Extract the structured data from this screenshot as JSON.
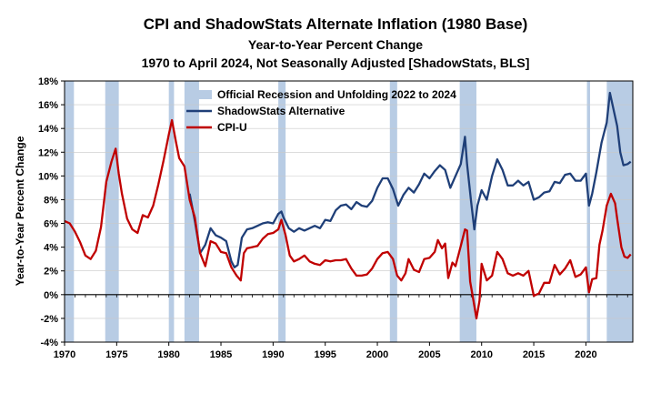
{
  "chart_data": {
    "type": "line",
    "title": "CPI and ShadowStats Alternate Inflation (1980 Base)",
    "subtitle": "Year-to-Year Percent Change",
    "subtitle2": "1970 to April 2024, Not Seasonally Adjusted  [ShadowStats, BLS]",
    "ylabel": "Year-to-Year Percent Change",
    "xlabel": "",
    "xlim": [
      1970,
      2024.5
    ],
    "ylim": [
      -4,
      18
    ],
    "y_ticks": [
      -4,
      -2,
      0,
      2,
      4,
      6,
      8,
      10,
      12,
      14,
      16,
      18
    ],
    "y_tick_labels": [
      "-4%",
      "-2%",
      "0%",
      "2%",
      "4%",
      "6%",
      "8%",
      "10%",
      "12%",
      "14%",
      "16%",
      "18%"
    ],
    "x_ticks": [
      1970,
      1975,
      1980,
      1985,
      1990,
      1995,
      2000,
      2005,
      2010,
      2015,
      2020
    ],
    "x_tick_labels": [
      "1970",
      "1975",
      "1980",
      "1985",
      "1990",
      "1995",
      "2000",
      "2005",
      "2010",
      "2015",
      "2020"
    ],
    "legend_position": "top-center",
    "recessions": {
      "name": "Official Recession and Unfolding 2022 to 2024",
      "color": "#b8cce4",
      "periods": [
        [
          1970.0,
          1970.9
        ],
        [
          1973.9,
          1975.2
        ],
        [
          1980.0,
          1980.5
        ],
        [
          1981.5,
          1982.9
        ],
        [
          1990.5,
          1991.2
        ],
        [
          2001.2,
          2001.9
        ],
        [
          2007.9,
          2009.5
        ],
        [
          2020.1,
          2020.4
        ],
        [
          2022.0,
          2024.5
        ]
      ]
    },
    "series": [
      {
        "name": "ShadowStats Alternative",
        "color": "#1f3f78",
        "x": [
          1982.0,
          1982.5,
          1983.0,
          1983.5,
          1984.0,
          1984.5,
          1985.0,
          1985.5,
          1986.0,
          1986.3,
          1986.6,
          1987.0,
          1987.5,
          1988.0,
          1988.5,
          1989.0,
          1989.5,
          1990.0,
          1990.5,
          1990.8,
          1991.0,
          1991.5,
          1992.0,
          1992.5,
          1993.0,
          1993.5,
          1994.0,
          1994.5,
          1995.0,
          1995.5,
          1996.0,
          1996.5,
          1997.0,
          1997.5,
          1998.0,
          1998.5,
          1999.0,
          1999.5,
          2000.0,
          2000.5,
          2001.0,
          2001.5,
          2002.0,
          2002.5,
          2003.0,
          2003.5,
          2004.0,
          2004.5,
          2005.0,
          2005.5,
          2006.0,
          2006.5,
          2007.0,
          2007.5,
          2008.0,
          2008.4,
          2008.6,
          2009.0,
          2009.3,
          2009.6,
          2010.0,
          2010.5,
          2011.0,
          2011.5,
          2012.0,
          2012.5,
          2013.0,
          2013.5,
          2014.0,
          2014.5,
          2015.0,
          2015.5,
          2016.0,
          2016.5,
          2017.0,
          2017.5,
          2018.0,
          2018.5,
          2019.0,
          2019.5,
          2020.0,
          2020.3,
          2020.6,
          2021.0,
          2021.5,
          2022.0,
          2022.3,
          2022.5,
          2023.0,
          2023.3,
          2023.6,
          2024.0,
          2024.3
        ],
        "values": [
          8.5,
          6.2,
          3.5,
          4.2,
          5.6,
          5.0,
          4.8,
          4.5,
          2.8,
          2.3,
          2.5,
          4.8,
          5.5,
          5.6,
          5.8,
          6.0,
          6.1,
          6.0,
          6.8,
          7.0,
          6.5,
          5.6,
          5.3,
          5.6,
          5.4,
          5.6,
          5.8,
          5.6,
          6.3,
          6.2,
          7.1,
          7.5,
          7.6,
          7.2,
          7.8,
          7.5,
          7.4,
          7.9,
          9.0,
          9.8,
          9.8,
          8.9,
          7.5,
          8.4,
          9.0,
          8.6,
          9.3,
          10.2,
          9.8,
          10.4,
          10.9,
          10.5,
          9.0,
          10.0,
          11.0,
          13.3,
          11.0,
          7.8,
          5.5,
          7.5,
          8.8,
          8.0,
          10.0,
          11.4,
          10.5,
          9.2,
          9.2,
          9.6,
          9.2,
          9.5,
          8.0,
          8.2,
          8.6,
          8.7,
          9.5,
          9.4,
          10.1,
          10.2,
          9.6,
          9.6,
          10.2,
          7.5,
          8.5,
          10.3,
          12.8,
          14.5,
          17.0,
          16.2,
          14.2,
          12.0,
          10.9,
          11.0,
          11.2
        ]
      },
      {
        "name": "CPI-U",
        "color": "#c00000",
        "x": [
          1970.0,
          1970.5,
          1971.0,
          1971.5,
          1972.0,
          1972.5,
          1973.0,
          1973.5,
          1974.0,
          1974.5,
          1974.9,
          1975.2,
          1975.5,
          1976.0,
          1976.5,
          1977.0,
          1977.5,
          1978.0,
          1978.5,
          1979.0,
          1979.5,
          1980.0,
          1980.3,
          1980.7,
          1981.0,
          1981.5,
          1982.0,
          1982.5,
          1983.0,
          1983.5,
          1984.0,
          1984.5,
          1985.0,
          1985.5,
          1986.0,
          1986.5,
          1986.9,
          1987.2,
          1987.5,
          1988.0,
          1988.5,
          1989.0,
          1989.5,
          1990.0,
          1990.5,
          1990.8,
          1991.2,
          1991.6,
          1992.0,
          1992.5,
          1993.0,
          1993.5,
          1994.0,
          1994.5,
          1995.0,
          1995.5,
          1996.0,
          1996.5,
          1997.0,
          1997.5,
          1998.0,
          1998.5,
          1999.0,
          1999.5,
          2000.0,
          2000.5,
          2001.0,
          2001.5,
          2001.9,
          2002.3,
          2002.7,
          2003.0,
          2003.5,
          2004.0,
          2004.5,
          2005.0,
          2005.5,
          2005.8,
          2006.2,
          2006.5,
          2006.8,
          2007.2,
          2007.5,
          2008.0,
          2008.4,
          2008.6,
          2008.9,
          2009.2,
          2009.5,
          2009.8,
          2010.0,
          2010.5,
          2011.0,
          2011.5,
          2012.0,
          2012.5,
          2013.0,
          2013.5,
          2014.0,
          2014.5,
          2015.0,
          2015.5,
          2016.0,
          2016.5,
          2017.0,
          2017.5,
          2018.0,
          2018.5,
          2019.0,
          2019.5,
          2020.0,
          2020.3,
          2020.6,
          2021.0,
          2021.3,
          2021.6,
          2022.0,
          2022.4,
          2022.8,
          2023.0,
          2023.4,
          2023.7,
          2024.0,
          2024.3
        ],
        "values": [
          6.2,
          6.0,
          5.3,
          4.4,
          3.3,
          3.0,
          3.7,
          5.7,
          9.5,
          11.2,
          12.3,
          10.2,
          8.5,
          6.4,
          5.5,
          5.2,
          6.7,
          6.5,
          7.5,
          9.3,
          11.3,
          13.5,
          14.7,
          12.8,
          11.5,
          10.8,
          8.0,
          6.5,
          3.5,
          2.4,
          4.5,
          4.3,
          3.6,
          3.5,
          2.3,
          1.6,
          1.2,
          3.5,
          3.9,
          4.0,
          4.1,
          4.7,
          5.1,
          5.2,
          5.5,
          6.3,
          5.0,
          3.3,
          2.8,
          3.0,
          3.3,
          2.8,
          2.6,
          2.5,
          2.9,
          2.8,
          2.9,
          2.9,
          3.0,
          2.2,
          1.6,
          1.6,
          1.7,
          2.2,
          3.0,
          3.5,
          3.6,
          3.0,
          1.6,
          1.2,
          1.8,
          3.0,
          2.1,
          1.9,
          3.0,
          3.1,
          3.6,
          4.6,
          3.9,
          4.3,
          1.4,
          2.7,
          2.4,
          4.1,
          5.5,
          5.4,
          1.1,
          -0.4,
          -2.0,
          -0.5,
          2.6,
          1.2,
          1.6,
          3.6,
          3.0,
          1.8,
          1.6,
          1.8,
          1.6,
          2.0,
          -0.1,
          0.1,
          1.0,
          1.0,
          2.5,
          1.7,
          2.2,
          2.9,
          1.5,
          1.7,
          2.3,
          0.2,
          1.3,
          1.4,
          4.2,
          5.4,
          7.5,
          8.5,
          7.7,
          6.4,
          4.0,
          3.2,
          3.1,
          3.4
        ]
      }
    ]
  }
}
